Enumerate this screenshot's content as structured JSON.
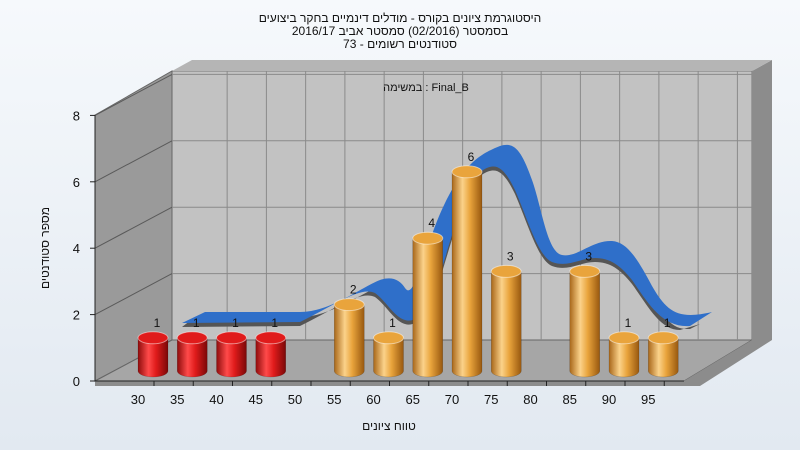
{
  "chart_data": {
    "type": "bar",
    "title": [
      "היסטוגרמת ציונים בקורס - מודלים דינמיים בחקר ביצועים",
      "בסמסטר  (02/2016)  סמסטר אביב 2016/17",
      "סטודנטים רשומים - 73"
    ],
    "subtitle": "במשימה : Final_B",
    "xlabel": "טווח ציונים",
    "ylabel": "מספר סטודנטים",
    "x_ticks": [
      30,
      35,
      40,
      45,
      50,
      55,
      60,
      65,
      70,
      75,
      80,
      85,
      90,
      95
    ],
    "y_ticks": [
      0,
      2,
      4,
      6,
      8
    ],
    "ylim": [
      0,
      8
    ],
    "bars": [
      {
        "x": 30,
        "value": 1,
        "label": "1",
        "color": "#e01b1b"
      },
      {
        "x": 35,
        "value": 1,
        "label": "1",
        "color": "#e01b1b"
      },
      {
        "x": 40,
        "value": 1,
        "label": "1",
        "color": "#e01b1b"
      },
      {
        "x": 45,
        "value": 1,
        "label": "1",
        "color": "#e01b1b"
      },
      {
        "x": 55,
        "value": 2,
        "label": "2",
        "color": "#e9a43c"
      },
      {
        "x": 60,
        "value": 1,
        "label": "1",
        "color": "#e9a43c"
      },
      {
        "x": 65,
        "value": 4,
        "label": "4",
        "color": "#e9a43c"
      },
      {
        "x": 70,
        "value": 6,
        "label": "6",
        "color": "#e9a43c"
      },
      {
        "x": 75,
        "value": 3,
        "label": "3",
        "color": "#e9a43c"
      },
      {
        "x": 85,
        "value": 3,
        "label": "3",
        "color": "#e9a43c"
      },
      {
        "x": 90,
        "value": 1,
        "label": "1",
        "color": "#e9a43c"
      },
      {
        "x": 95,
        "value": 1,
        "label": "1",
        "color": "#e9a43c"
      }
    ],
    "curve": {
      "color": "#2f6fc9",
      "edge_color": "#555555"
    },
    "grid": true,
    "colors": {
      "plot_back": "#c2c2c2",
      "plot_side": "#9a9a9a",
      "floor": "#a6a6a6"
    }
  }
}
